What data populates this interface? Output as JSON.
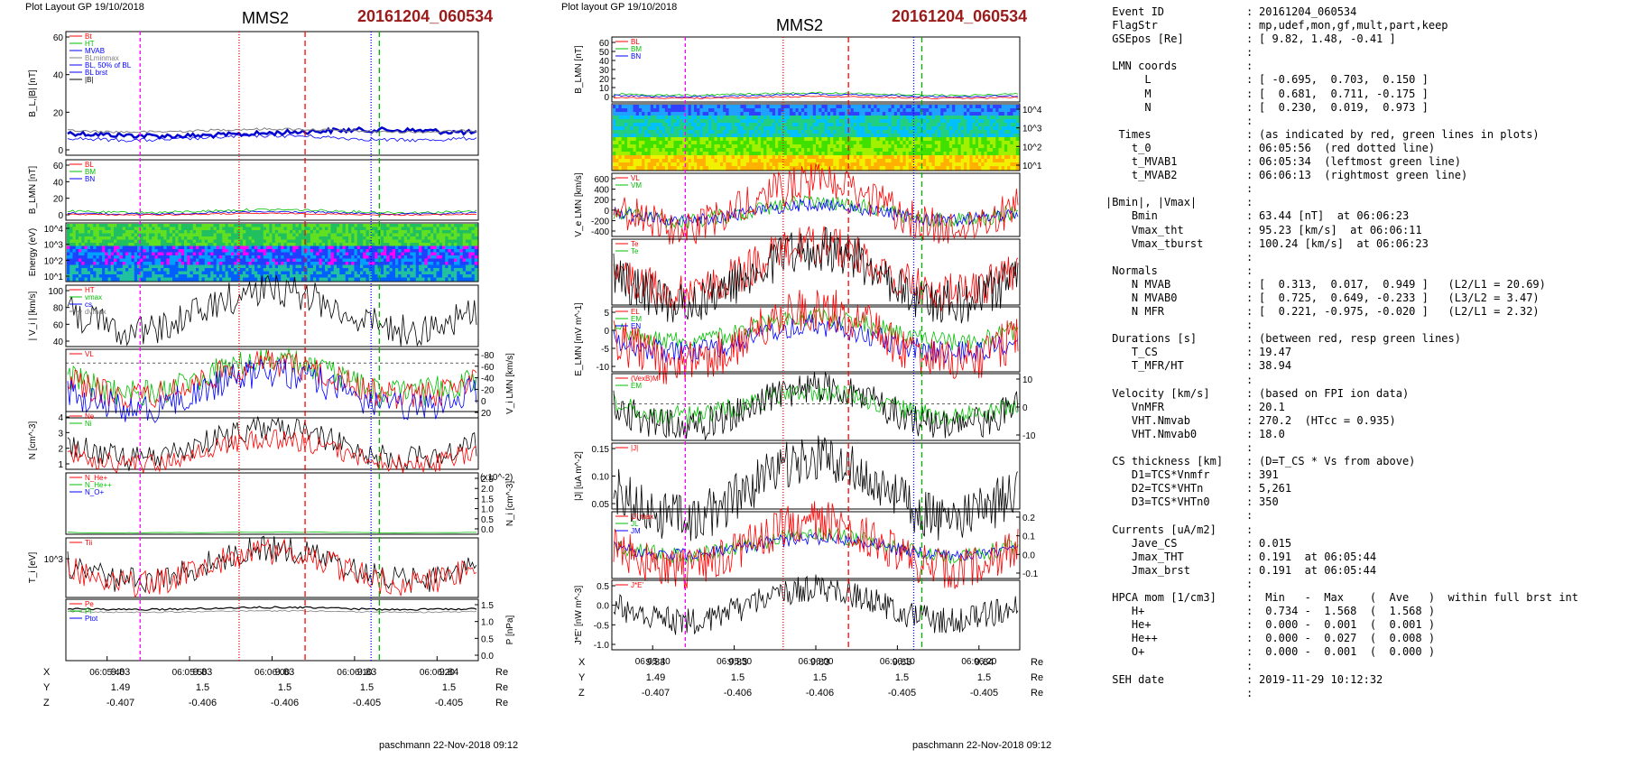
{
  "header": {
    "layout_left": "Plot Layout GP 19/10/2018",
    "layout_right": "Plot layout GP 19/10/2018",
    "spacecraft": "MMS2",
    "event": "20161204_060534"
  },
  "footer": {
    "signature": "paschmann 22-Nov-2018 09:12"
  },
  "colors": {
    "event_red": "#9b1b1b",
    "red": "#ff0000",
    "green": "#00c000",
    "blue": "#0000ff",
    "magenta": "#ff00ff",
    "gray": "#808080"
  },
  "time_axis": {
    "ticks": [
      "06:05:40",
      "06:05:50",
      "06:06:00",
      "06:06:10",
      "06:06:20"
    ],
    "markers": {
      "magenta_dashed": "06:05:44",
      "red_dotted": "06:05:56",
      "red_dashed": "06:06:04",
      "blue_dotted": "06:06:12",
      "green_dashed": "06:06:13"
    }
  },
  "coords": {
    "rows": [
      {
        "label": "X",
        "values": [
          "9.83",
          "9.83",
          "9.83",
          "9.83",
          "9.84"
        ],
        "unit": "Re"
      },
      {
        "label": "Y",
        "values": [
          "1.49",
          "1.5",
          "1.5",
          "1.5",
          "1.5"
        ],
        "unit": "Re"
      },
      {
        "label": "Z",
        "values": [
          "-0.407",
          "-0.406",
          "-0.406",
          "-0.405",
          "-0.405"
        ],
        "unit": "Re"
      }
    ]
  },
  "chart_data": [
    {
      "type": "line",
      "panel": "left",
      "panels": [
        {
          "ylabel": "B_L,|B| [nT]",
          "yticks": [
            "0",
            "20",
            "40",
            "60"
          ],
          "legend": [
            "Bt",
            "HT",
            "MVAB",
            "BLminmax",
            "BL, 50% of BL",
            "BL brst",
            "|B|"
          ]
        },
        {
          "ylabel": "B_LMN [nT]",
          "yticks": [
            "0",
            "20",
            "40",
            "60"
          ],
          "legend": [
            "BL",
            "BM",
            "BN"
          ]
        },
        {
          "type": "heatmap",
          "ylabel": "Energy (eV)",
          "yticks": [
            "10^1",
            "10^2",
            "10^3",
            "10^4"
          ]
        },
        {
          "ylabel": "| V_i | [km/s]",
          "yticks": [
            "40",
            "60",
            "80",
            "100"
          ],
          "legend": [
            "HT",
            "vmax",
            "cs",
            "dvmax"
          ]
        },
        {
          "ylabel": "V_i LMN [km/s]",
          "yticks": [
            "20",
            "0",
            "-20",
            "-40",
            "-60",
            "-80"
          ],
          "legend": [
            "VL"
          ]
        },
        {
          "ylabel": "N [cm^-3]",
          "yticks": [
            "1",
            "2",
            "3",
            "4"
          ],
          "legend": [
            "Ne",
            "Ni"
          ]
        },
        {
          "ylabel": "N_i [cm^-3]",
          "scale_note": "(x10^-2)",
          "yticks": [
            "0.0",
            "0.5",
            "1.0",
            "1.5",
            "2.0",
            "2.5"
          ],
          "legend": [
            "N_He+",
            "N_He++",
            "N_O+"
          ]
        },
        {
          "ylabel": "T_i [eV]",
          "yticks": [
            "10^3"
          ],
          "legend": [
            "Tii"
          ]
        },
        {
          "ylabel": "P [nPa]",
          "yticks": [
            "0.0",
            "0.5",
            "1.0",
            "1.5"
          ],
          "legend": [
            "Pe",
            "Pi",
            "Ptot"
          ]
        }
      ]
    },
    {
      "type": "line",
      "panel": "middle",
      "panels": [
        {
          "ylabel": "B_LMN [nT]",
          "yticks": [
            "0",
            "10",
            "20",
            "30",
            "40",
            "50",
            "60"
          ],
          "legend": [
            "BL",
            "BM",
            "BN"
          ]
        },
        {
          "type": "heatmap",
          "ylabel": "Energy (eV)",
          "yticks": [
            "10^1",
            "10^2",
            "10^3",
            "10^4"
          ]
        },
        {
          "ylabel": "V_e LMN [km/s]",
          "yticks": [
            "-400",
            "-200",
            "0",
            "200",
            "400",
            "600"
          ],
          "legend": [
            "VL",
            "VM"
          ]
        },
        {
          "ylabel": "T_e [eV]",
          "yticks": [],
          "legend": [
            "Te",
            "Te"
          ]
        },
        {
          "ylabel": "E_LMN [mV m^-1]",
          "yticks": [
            "-10",
            "-5",
            "0",
            "5"
          ],
          "legend": [
            "EL",
            "EM",
            "EN"
          ]
        },
        {
          "ylabel": "E_M [mV m^-1]",
          "yticks": [
            "-10",
            "0",
            "10"
          ],
          "legend": [
            "(VexB)M",
            "EM"
          ]
        },
        {
          "ylabel": "|J| [uA m^-2]",
          "yticks": [
            "0.05",
            "0.10",
            "0.15"
          ],
          "legend": [
            "|J|"
          ]
        },
        {
          "ylabel": "J [uA m^-2]",
          "yticks": [
            "-0.1",
            "0.0",
            "0.1",
            "0.2"
          ],
          "legend": [
            "|J| max",
            "JL",
            "JM"
          ]
        },
        {
          "ylabel": "J*E' [nW m^-3]",
          "yticks": [
            "-1.0",
            "-0.5",
            "0.0",
            "0.5"
          ],
          "legend": [
            "J*E'"
          ]
        }
      ]
    }
  ],
  "info": {
    "rows": [
      {
        "k": " Event ID",
        "s": ":",
        "v": "20161204_060534"
      },
      {
        "k": " FlagStr",
        "s": ":",
        "v": "mp,udef,mon,gf,mult,part,keep"
      },
      {
        "k": " GSEpos [Re]",
        "s": ":",
        "v": "[ 9.82, 1.48, -0.41 ]"
      },
      {
        "k": "",
        "s": ":",
        "v": ""
      },
      {
        "k": " LMN coords",
        "s": ":",
        "v": ""
      },
      {
        "k": "      L",
        "s": ":",
        "v": "[ -0.695,  0.703,  0.150 ]"
      },
      {
        "k": "      M",
        "s": ":",
        "v": "[  0.681,  0.711, -0.175 ]"
      },
      {
        "k": "      N",
        "s": ":",
        "v": "[  0.230,  0.019,  0.973 ]"
      },
      {
        "k": "",
        "s": ":",
        "v": ""
      },
      {
        "k": "  Times",
        "s": ":",
        "v": "(as indicated by red, green lines in plots)"
      },
      {
        "k": "    t_0",
        "s": ":",
        "v": "06:05:56  (red dotted line)"
      },
      {
        "k": "    t_MVAB1",
        "s": ":",
        "v": "06:05:34  (leftmost green line)"
      },
      {
        "k": "    t_MVAB2",
        "s": ":",
        "v": "06:06:13  (rightmost green line)"
      },
      {
        "k": "",
        "s": ":",
        "v": ""
      },
      {
        "k": "|Bmin|, |Vmax|",
        "s": ":",
        "v": ""
      },
      {
        "k": "    Bmin",
        "s": ":",
        "v": "63.44 [nT]  at 06:06:23"
      },
      {
        "k": "    Vmax_tht",
        "s": ":",
        "v": "95.23 [km/s]  at 06:06:11"
      },
      {
        "k": "    Vmax_tburst",
        "s": ":",
        "v": "100.24 [km/s]  at 06:06:23"
      },
      {
        "k": "",
        "s": ":",
        "v": ""
      },
      {
        "k": " Normals",
        "s": ":",
        "v": ""
      },
      {
        "k": "    N MVAB",
        "s": ":",
        "v": "[  0.313,  0.017,  0.949 ]   (L2/L1 = 20.69)"
      },
      {
        "k": "    N MVAB0",
        "s": ":",
        "v": "[  0.725,  0.649, -0.233 ]   (L3/L2 = 3.47)"
      },
      {
        "k": "    N MFR",
        "s": ":",
        "v": "[  0.221, -0.975, -0.020 ]   (L2/L1 = 2.32)"
      },
      {
        "k": "",
        "s": ":",
        "v": ""
      },
      {
        "k": " Durations [s]",
        "s": ":",
        "v": "(between red, resp green lines)"
      },
      {
        "k": "    T_CS",
        "s": ":",
        "v": "19.47"
      },
      {
        "k": "    T_MFR/HT",
        "s": ":",
        "v": "38.94"
      },
      {
        "k": "",
        "s": ":",
        "v": ""
      },
      {
        "k": " Velocity [km/s]",
        "s": ":",
        "v": "(based on FPI ion data)"
      },
      {
        "k": "    VnMFR",
        "s": ":",
        "v": "20.1"
      },
      {
        "k": "    VHT.Nmvab",
        "s": ":",
        "v": "270.2  (HTcc = 0.935)"
      },
      {
        "k": "    VHT.Nmvab0",
        "s": ":",
        "v": "18.0"
      },
      {
        "k": "",
        "s": ":",
        "v": ""
      },
      {
        "k": " CS thickness [km]",
        "s": ":",
        "v": "(D=T_CS * Vs from above)"
      },
      {
        "k": "    D1=TCS*Vnmfr",
        "s": ":",
        "v": "391"
      },
      {
        "k": "    D2=TCS*VHTn",
        "s": ":",
        "v": "5,261"
      },
      {
        "k": "    D3=TCS*VHTn0",
        "s": ":",
        "v": "350"
      },
      {
        "k": "",
        "s": ":",
        "v": ""
      },
      {
        "k": " Currents [uA/m2]",
        "s": ":",
        "v": ""
      },
      {
        "k": "    Jave_CS",
        "s": ":",
        "v": "0.015"
      },
      {
        "k": "    Jmax_THT",
        "s": ":",
        "v": "0.191  at 06:05:44"
      },
      {
        "k": "    Jmax_brst",
        "s": ":",
        "v": "0.191  at 06:05:44"
      },
      {
        "k": "",
        "s": ":",
        "v": ""
      },
      {
        "k": " HPCA mom [1/cm3]",
        "s": ":",
        "v": " Min   -  Max    (  Ave   )  within full brst int"
      },
      {
        "k": "    H+",
        "s": ":",
        "v": " 0.734 -  1.568  (  1.568 )"
      },
      {
        "k": "    He+",
        "s": ":",
        "v": " 0.000 -  0.001  (  0.001 )"
      },
      {
        "k": "    He++",
        "s": ":",
        "v": " 0.000 -  0.027  (  0.008 )"
      },
      {
        "k": "    O+",
        "s": ":",
        "v": " 0.000 -  0.001  (  0.000 )"
      },
      {
        "k": "",
        "s": ":",
        "v": ""
      },
      {
        "k": " SEH date",
        "s": ":",
        "v": "2019-11-29 10:12:32"
      },
      {
        "k": "",
        "s": ":",
        "v": ""
      }
    ]
  }
}
